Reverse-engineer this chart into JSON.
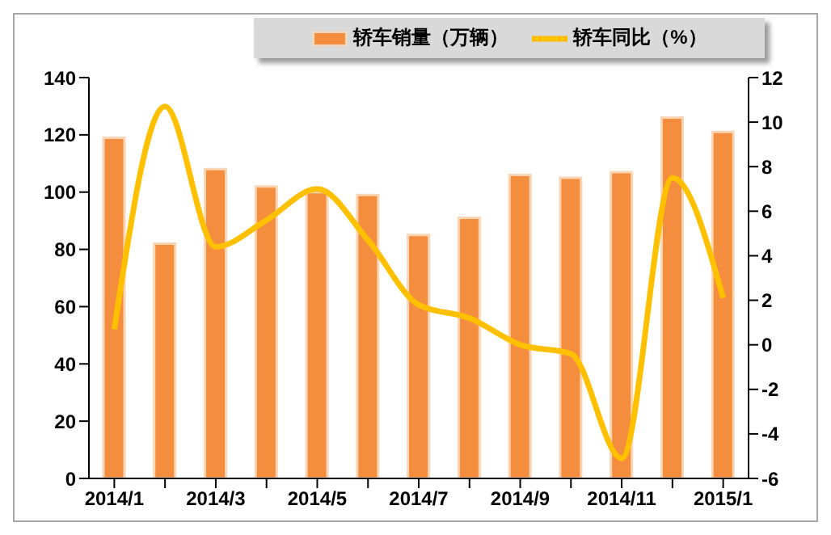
{
  "chart_data": {
    "type": "bar",
    "categories": [
      "2014/1",
      null,
      "2014/3",
      null,
      "2014/5",
      null,
      "2014/7",
      null,
      "2014/9",
      null,
      "2014/11",
      null,
      "2015/1"
    ],
    "series": [
      {
        "name": "轿车销量（万辆）",
        "color": "#f58d3e",
        "values": [
          119,
          82,
          108,
          102,
          100,
          99,
          85,
          91,
          106,
          105,
          107,
          126,
          121
        ]
      },
      {
        "name": "轿车同比（%）",
        "type": "line",
        "axis": "y2",
        "color": "#ffc000",
        "values": [
          0.7,
          10.7,
          4.4,
          5.6,
          7.0,
          4.7,
          1.8,
          1.2,
          0.0,
          -0.4,
          -5.1,
          7.5,
          2.1
        ]
      }
    ],
    "ylim": [
      0,
      140
    ],
    "yticks": [
      0,
      20,
      40,
      60,
      80,
      100,
      120,
      140
    ],
    "y2lim": [
      -6,
      12
    ],
    "y2ticks": [
      -6,
      -4,
      -2,
      0,
      2,
      4,
      6,
      8,
      10,
      12
    ],
    "legend": "top",
    "grid": false,
    "marker": "none",
    "line_style": "solid"
  }
}
